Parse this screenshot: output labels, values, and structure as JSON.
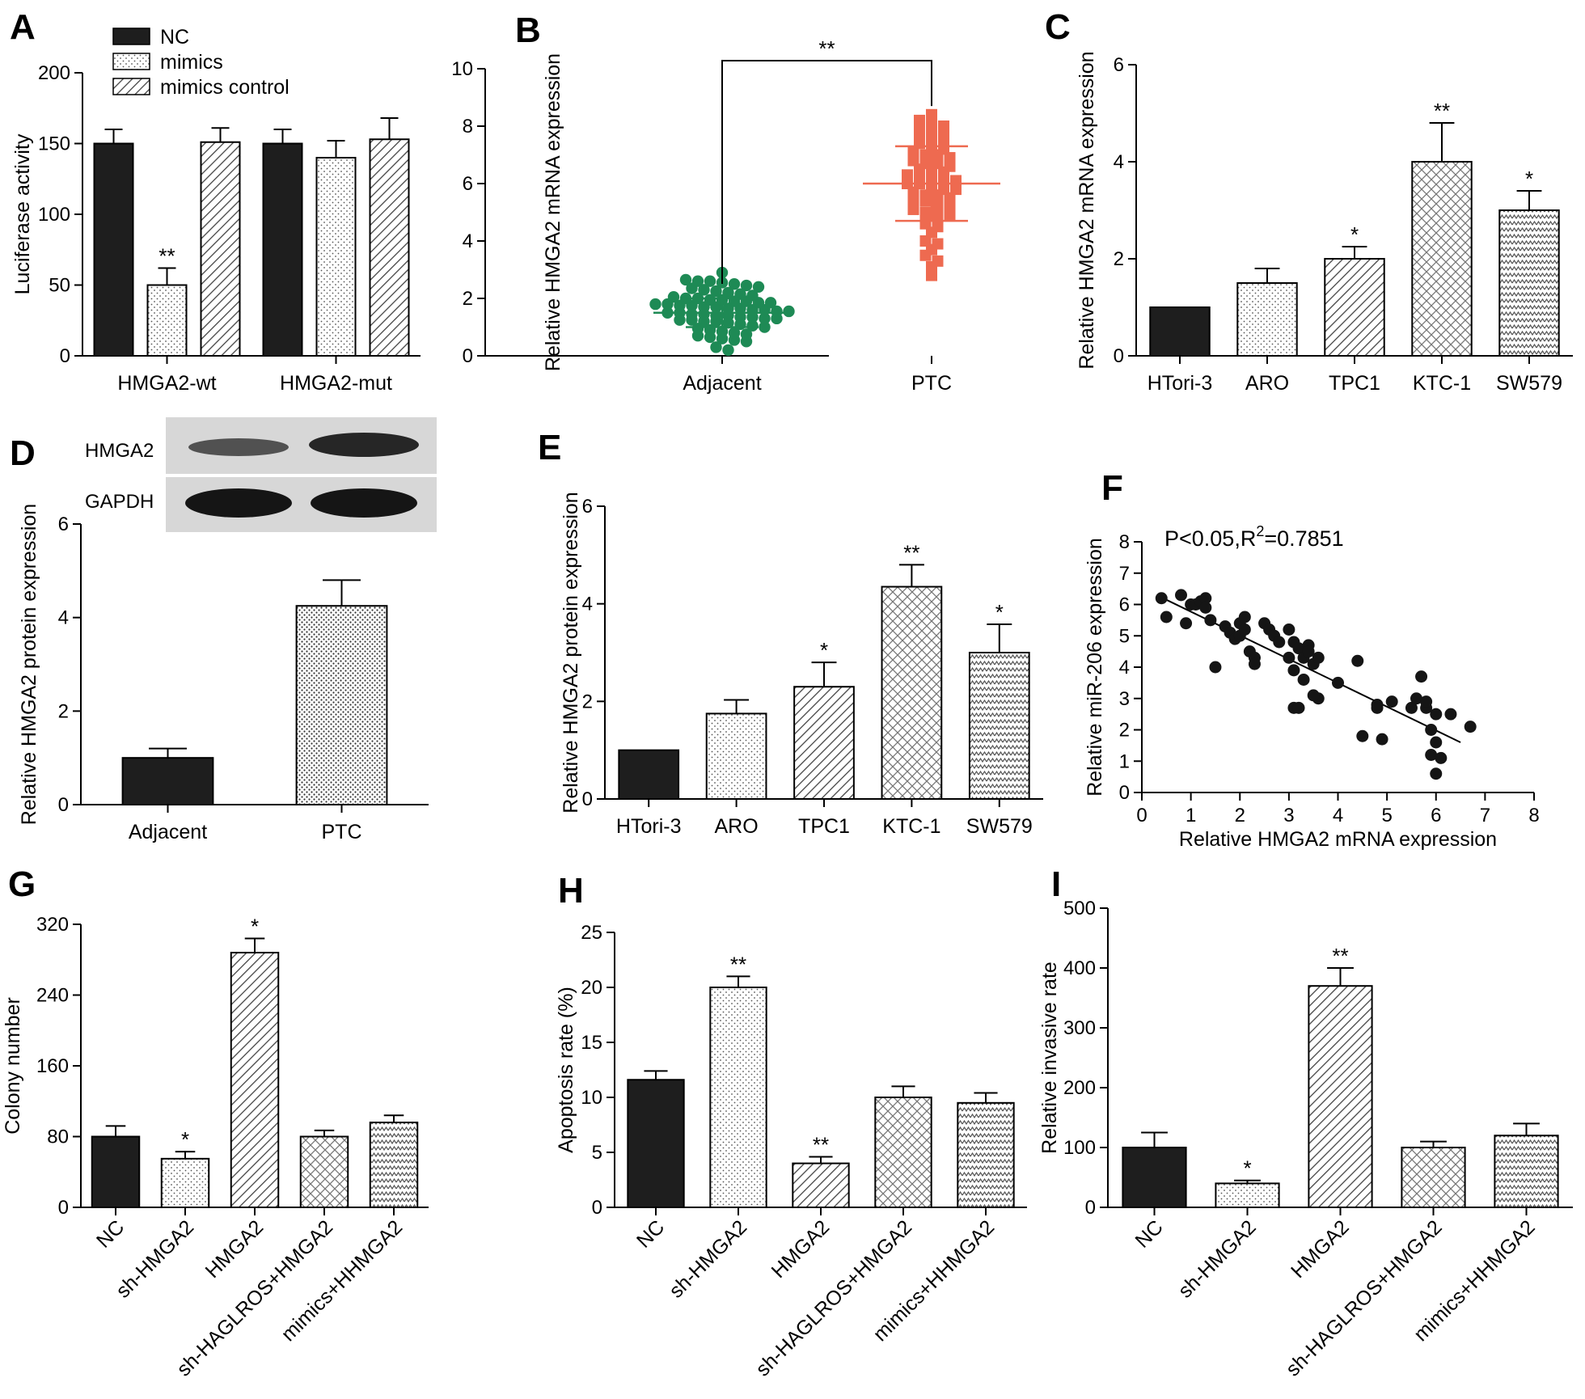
{
  "panels": [
    {
      "id": "A",
      "type": "bar",
      "ylabel": "Luciferase activity",
      "ylim": [
        0,
        200
      ],
      "yticks": [
        0,
        50,
        100,
        150,
        200
      ],
      "categories": [
        "HMGA2-wt",
        "HMGA2-mut"
      ],
      "series": [
        {
          "name": "NC",
          "pattern": "solid",
          "values": [
            150,
            150
          ],
          "errors": [
            10,
            10
          ],
          "sig": [
            "",
            ""
          ]
        },
        {
          "name": "mimics",
          "pattern": "dots",
          "values": [
            50,
            140
          ],
          "errors": [
            12,
            12
          ],
          "sig": [
            "**",
            ""
          ]
        },
        {
          "name": "mimics control",
          "pattern": "diag",
          "values": [
            151,
            153
          ],
          "errors": [
            10,
            15
          ],
          "sig": [
            "",
            ""
          ]
        }
      ],
      "legend_position": "top-left"
    },
    {
      "id": "B",
      "type": "scatter",
      "ylabel": "Relative HMGA2 mRNA expression",
      "ylim": [
        0,
        10
      ],
      "yticks": [
        0,
        2,
        4,
        6,
        8,
        10
      ],
      "categories": [
        "Adjacent",
        "PTC"
      ],
      "groups": [
        {
          "name": "Adjacent",
          "color": "#1e8a55",
          "marker": "circle",
          "mean": 1.5,
          "sd": 0.5,
          "values": [
            2.9,
            2.65,
            2.6,
            2.6,
            2.55,
            2.5,
            2.45,
            2.4,
            2.35,
            2.3,
            2.25,
            2.2,
            2.15,
            2.1,
            2.05,
            2.0,
            2.0,
            1.95,
            1.95,
            1.9,
            1.9,
            1.85,
            1.85,
            1.8,
            1.8,
            1.75,
            1.75,
            1.7,
            1.7,
            1.65,
            1.65,
            1.6,
            1.6,
            1.55,
            1.55,
            1.5,
            1.5,
            1.45,
            1.45,
            1.4,
            1.4,
            1.35,
            1.35,
            1.3,
            1.3,
            1.25,
            1.25,
            1.2,
            1.2,
            1.15,
            1.1,
            1.05,
            1.0,
            0.95,
            0.9,
            0.85,
            0.8,
            0.75,
            0.7,
            0.65,
            0.6,
            0.55,
            0.5,
            0.3,
            0.2
          ]
        },
        {
          "name": "PTC",
          "color": "#ee6a50",
          "marker": "square",
          "mean": 6.0,
          "sd": 1.3,
          "values": [
            8.4,
            8.2,
            8.1,
            8.0,
            7.9,
            7.8,
            7.8,
            7.7,
            7.6,
            7.5,
            7.4,
            7.3,
            7.2,
            7.1,
            7.0,
            7.0,
            6.9,
            6.8,
            6.7,
            6.7,
            6.6,
            6.5,
            6.5,
            6.4,
            6.3,
            6.3,
            6.2,
            6.1,
            6.1,
            6.0,
            6.0,
            5.9,
            5.8,
            5.8,
            5.7,
            5.6,
            5.6,
            5.5,
            5.4,
            5.4,
            5.3,
            5.2,
            5.1,
            5.0,
            5.0,
            4.9,
            4.8,
            4.7,
            4.6,
            4.5,
            4.3,
            4.0,
            3.9,
            3.7,
            3.5,
            3.3,
            3.1,
            2.8
          ]
        }
      ],
      "bracket": {
        "label": "**",
        "level": 10.3
      }
    },
    {
      "id": "C",
      "type": "bar",
      "ylabel": "Relative HMGA2 mRNA expression",
      "ylim": [
        0,
        6
      ],
      "yticks": [
        0,
        2,
        4,
        6
      ],
      "categories": [
        "HTori-3",
        "ARO",
        "TPC1",
        "KTC-1",
        "SW579"
      ],
      "values": [
        1.0,
        1.5,
        2.0,
        4.0,
        3.0
      ],
      "errors": [
        0,
        0.3,
        0.25,
        0.8,
        0.4
      ],
      "patterns": [
        "solid",
        "dots",
        "diag",
        "cross",
        "zigzag"
      ],
      "sig": [
        "",
        "",
        "*",
        "**",
        "*"
      ]
    },
    {
      "id": "D",
      "type": "bar",
      "ylabel": "Relative HMGA2 protein expression",
      "ylim": [
        0,
        6
      ],
      "yticks": [
        0,
        2,
        4,
        6
      ],
      "categories": [
        "Adjacent",
        "PTC"
      ],
      "values": [
        1.0,
        4.25
      ],
      "errors": [
        0.2,
        0.55
      ],
      "patterns": [
        "solid",
        "dense-dots"
      ],
      "sig": [
        "",
        ""
      ],
      "blot": {
        "labels": [
          "HMGA2",
          "GAPDH"
        ]
      }
    },
    {
      "id": "E",
      "type": "bar",
      "ylabel": "Relative HMGA2 protein expression",
      "ylim": [
        0,
        6
      ],
      "yticks": [
        0,
        2,
        4,
        6
      ],
      "categories": [
        "HTori-3",
        "ARO",
        "TPC1",
        "KTC-1",
        "SW579"
      ],
      "values": [
        1.0,
        1.75,
        2.3,
        4.35,
        3.0
      ],
      "errors": [
        0,
        0.28,
        0.5,
        0.45,
        0.58
      ],
      "patterns": [
        "solid",
        "dots",
        "diag",
        "cross",
        "zigzag"
      ],
      "sig": [
        "",
        "",
        "*",
        "**",
        "*"
      ]
    },
    {
      "id": "F",
      "type": "scatter",
      "xlabel": "Relative HMGA2 mRNA expression",
      "ylabel": "Relative miR-206 expression",
      "xlim": [
        0,
        8
      ],
      "ylim": [
        0,
        8
      ],
      "xticks": [
        0,
        1,
        2,
        3,
        4,
        5,
        6,
        7,
        8
      ],
      "yticks": [
        0,
        1,
        2,
        3,
        4,
        5,
        6,
        7,
        8
      ],
      "annotation": {
        "prefix": "P<0.05,R",
        "sup": "2",
        "suffix": "=0.7851"
      },
      "points": [
        [
          0.4,
          6.2
        ],
        [
          0.5,
          5.6
        ],
        [
          0.8,
          6.3
        ],
        [
          0.9,
          5.4
        ],
        [
          1.0,
          6.0
        ],
        [
          1.1,
          6.0
        ],
        [
          1.2,
          6.1
        ],
        [
          1.3,
          6.2
        ],
        [
          1.3,
          5.9
        ],
        [
          1.4,
          5.5
        ],
        [
          1.5,
          4.0
        ],
        [
          1.7,
          5.3
        ],
        [
          1.8,
          5.1
        ],
        [
          1.9,
          4.9
        ],
        [
          2.0,
          5.4
        ],
        [
          2.0,
          5.0
        ],
        [
          2.1,
          5.6
        ],
        [
          2.1,
          5.2
        ],
        [
          2.2,
          4.5
        ],
        [
          2.3,
          4.3
        ],
        [
          2.3,
          4.1
        ],
        [
          2.5,
          5.4
        ],
        [
          2.6,
          5.2
        ],
        [
          2.7,
          5.0
        ],
        [
          2.8,
          4.8
        ],
        [
          3.0,
          4.3
        ],
        [
          3.0,
          5.2
        ],
        [
          3.1,
          4.8
        ],
        [
          3.1,
          3.9
        ],
        [
          3.2,
          4.6
        ],
        [
          3.3,
          4.3
        ],
        [
          3.3,
          3.6
        ],
        [
          3.1,
          2.7
        ],
        [
          3.2,
          2.7
        ],
        [
          3.4,
          4.7
        ],
        [
          3.4,
          4.5
        ],
        [
          3.5,
          4.1
        ],
        [
          3.6,
          4.3
        ],
        [
          3.6,
          3.0
        ],
        [
          3.5,
          3.1
        ],
        [
          4.0,
          3.5
        ],
        [
          4.4,
          4.2
        ],
        [
          4.5,
          1.8
        ],
        [
          4.8,
          2.8
        ],
        [
          4.8,
          2.7
        ],
        [
          5.1,
          2.9
        ],
        [
          4.9,
          1.7
        ],
        [
          5.5,
          2.7
        ],
        [
          5.6,
          3.0
        ],
        [
          5.7,
          3.7
        ],
        [
          5.8,
          2.7
        ],
        [
          5.9,
          2.0
        ],
        [
          6.0,
          2.5
        ],
        [
          6.0,
          1.6
        ],
        [
          5.9,
          1.2
        ],
        [
          6.1,
          1.1
        ],
        [
          6.0,
          0.6
        ],
        [
          6.3,
          2.5
        ],
        [
          6.7,
          2.1
        ],
        [
          5.8,
          2.9
        ]
      ],
      "fit": {
        "x": [
          0.5,
          6.5
        ],
        "y": [
          6.15,
          1.6
        ]
      }
    },
    {
      "id": "G",
      "type": "bar",
      "ylabel": "Colony number",
      "ylim": [
        0,
        320
      ],
      "yticks": [
        0,
        80,
        160,
        240,
        320
      ],
      "categories": [
        "NC",
        "sh-HMGA2",
        "HMGA2",
        "sh-HAGLROS+HMGA2",
        "mimics+HHMGA2"
      ],
      "values": [
        80,
        55,
        288,
        80,
        96
      ],
      "errors": [
        12,
        8,
        16,
        7,
        8
      ],
      "patterns": [
        "solid",
        "dots",
        "diag",
        "cross",
        "zigzag"
      ],
      "sig": [
        "",
        "*",
        "*",
        "",
        ""
      ]
    },
    {
      "id": "H",
      "type": "bar",
      "ylabel": "Apoptosis rate (%)",
      "ylim": [
        0,
        25
      ],
      "yticks": [
        0,
        5,
        10,
        15,
        20,
        25
      ],
      "categories": [
        "NC",
        "sh-HMGA2",
        "HMGA2",
        "sh-HAGLROS+HMGA2",
        "mimics+HHMGA2"
      ],
      "values": [
        11.6,
        20.0,
        4.0,
        10.0,
        9.5
      ],
      "errors": [
        0.8,
        1.0,
        0.6,
        1.0,
        0.9
      ],
      "patterns": [
        "solid",
        "dots",
        "diag",
        "cross",
        "zigzag"
      ],
      "sig": [
        "",
        "**",
        "**",
        "",
        ""
      ]
    },
    {
      "id": "I",
      "type": "bar",
      "ylabel": "Relative invasive rate",
      "ylim": [
        0,
        500
      ],
      "yticks": [
        0,
        100,
        200,
        300,
        400,
        500
      ],
      "categories": [
        "NC",
        "sh-HMGA2",
        "HMGA2",
        "sh-HAGLROS+HMGA2",
        "mimics+HHMGA2"
      ],
      "values": [
        100,
        40,
        370,
        100,
        120
      ],
      "errors": [
        25,
        5,
        30,
        10,
        20
      ],
      "patterns": [
        "solid",
        "dots",
        "diag",
        "cross",
        "zigzag"
      ],
      "sig": [
        "",
        "*",
        "**",
        "",
        ""
      ]
    }
  ]
}
